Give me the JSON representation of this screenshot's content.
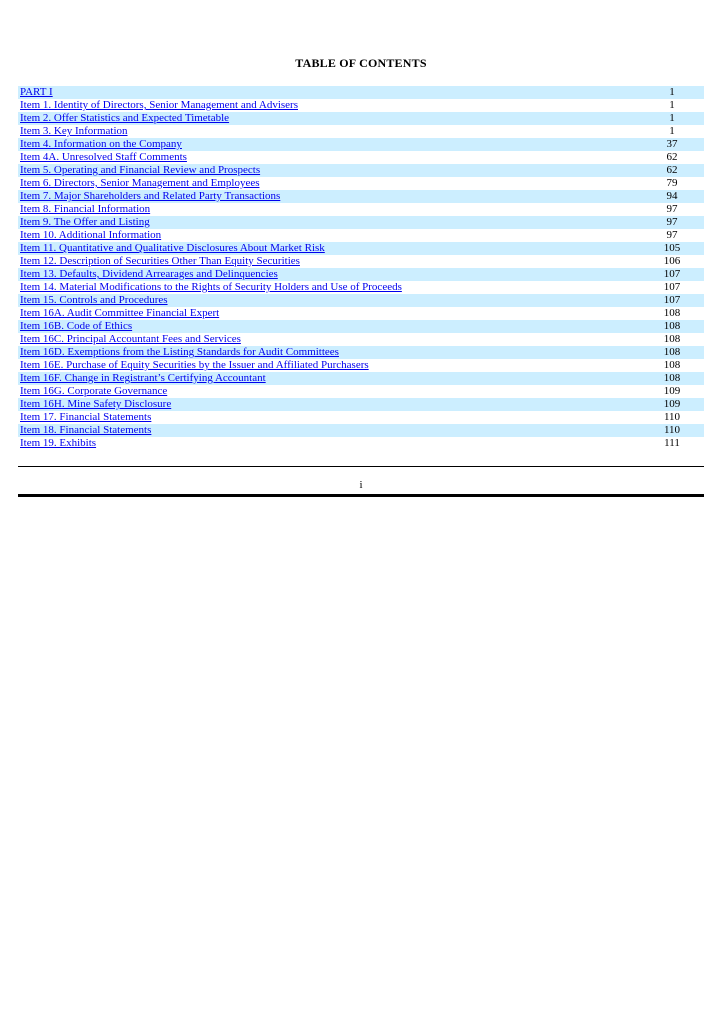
{
  "page": {
    "title": "TABLE OF CONTENTS",
    "footer_label": "i"
  },
  "toc": {
    "link_color": "#0000EE",
    "highlight_color": "#CCEEFF",
    "rows": [
      {
        "label": "PART I",
        "page": "1"
      },
      {
        "label": "Item 1. Identity of Directors, Senior Management and Advisers",
        "page": "1"
      },
      {
        "label": "Item 2. Offer Statistics and Expected Timetable",
        "page": "1"
      },
      {
        "label": "Item 3. Key Information",
        "page": "1"
      },
      {
        "label": "Item 4. Information on the Company",
        "page": "37"
      },
      {
        "label": "Item 4A. Unresolved Staff Comments",
        "page": "62"
      },
      {
        "label": "Item 5. Operating and Financial Review and Prospects",
        "page": "62"
      },
      {
        "label": "Item 6. Directors, Senior Management and Employees",
        "page": "79"
      },
      {
        "label": "Item 7. Major Shareholders and Related Party Transactions",
        "page": "94"
      },
      {
        "label": "Item 8. Financial Information",
        "page": "97"
      },
      {
        "label": "Item 9. The Offer and Listing",
        "page": "97"
      },
      {
        "label": "Item 10. Additional Information",
        "page": "97"
      },
      {
        "label": "Item 11. Quantitative and Qualitative Disclosures About Market Risk",
        "page": "105"
      },
      {
        "label": "Item 12. Description of Securities Other Than Equity Securities",
        "page": "106"
      },
      {
        "label": "Item 13. Defaults, Dividend Arrearages and Delinquencies",
        "page": "107"
      },
      {
        "label": "Item 14. Material Modifications to the Rights of Security Holders and Use of Proceeds",
        "page": "107"
      },
      {
        "label": "Item 15. Controls and Procedures",
        "page": "107"
      },
      {
        "label": "Item 16A. Audit Committee Financial Expert",
        "page": "108"
      },
      {
        "label": "Item 16B. Code of Ethics",
        "page": "108"
      },
      {
        "label": "Item 16C. Principal Accountant Fees and Services",
        "page": "108"
      },
      {
        "label": "Item 16D. Exemptions from the Listing Standards for Audit Committees",
        "page": "108"
      },
      {
        "label": "Item 16E. Purchase of Equity Securities by the Issuer and Affiliated Purchasers",
        "page": "108"
      },
      {
        "label": "Item 16F. Change in Registrant’s Certifying Accountant",
        "page": "108"
      },
      {
        "label": "Item 16G. Corporate Governance",
        "page": "109"
      },
      {
        "label": "Item 16H. Mine Safety Disclosure",
        "page": "109"
      },
      {
        "label": "Item 17. Financial Statements",
        "page": "110"
      },
      {
        "label": "Item 18. Financial Statements",
        "page": "110"
      },
      {
        "label": "Item 19. Exhibits",
        "page": "111"
      }
    ]
  }
}
